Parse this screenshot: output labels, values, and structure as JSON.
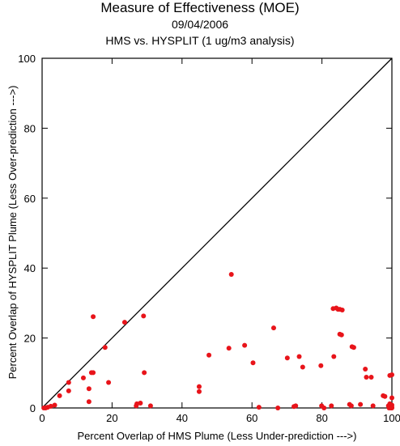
{
  "chart_data": {
    "type": "scatter",
    "title": "Measure of Effectiveness (MOE)",
    "subtitle_date": "09/04/2006",
    "subtitle_analysis": "HMS vs. HYSPLIT  (1 ug/m3 analysis)",
    "xlabel": "Percent Overlap of HMS Plume (Less Under-prediction --->)",
    "ylabel": "Percent Overlap of HYSPLIT Plume (Less Over-prediction --->)",
    "xlim": [
      0,
      100
    ],
    "ylim": [
      0,
      100
    ],
    "xticks": [
      0,
      20,
      40,
      60,
      80,
      100
    ],
    "yticks": [
      0,
      20,
      40,
      60,
      80,
      100
    ],
    "reference_line": {
      "from": [
        0,
        0
      ],
      "to": [
        100,
        100
      ]
    },
    "grid": false,
    "point_color": "#e8141a",
    "points": [
      [
        0.5,
        0.0
      ],
      [
        1.0,
        0.0
      ],
      [
        1.6,
        0.2
      ],
      [
        2.5,
        0.5
      ],
      [
        3.6,
        0.8
      ],
      [
        5.0,
        3.5
      ],
      [
        7.6,
        7.3
      ],
      [
        7.6,
        4.9
      ],
      [
        11.8,
        8.6
      ],
      [
        13.4,
        1.8
      ],
      [
        13.4,
        5.5
      ],
      [
        14.1,
        10.1
      ],
      [
        14.6,
        10.1
      ],
      [
        14.6,
        26.1
      ],
      [
        18.0,
        17.3
      ],
      [
        19.0,
        7.3
      ],
      [
        23.6,
        24.5
      ],
      [
        26.9,
        0.6
      ],
      [
        27.1,
        1.2
      ],
      [
        28.1,
        1.4
      ],
      [
        29.0,
        26.3
      ],
      [
        29.2,
        10.1
      ],
      [
        31.0,
        0.6
      ],
      [
        44.9,
        6.1
      ],
      [
        44.9,
        4.7
      ],
      [
        47.7,
        15.1
      ],
      [
        53.4,
        17.1
      ],
      [
        54.1,
        38.2
      ],
      [
        57.9,
        17.9
      ],
      [
        60.3,
        12.9
      ],
      [
        62.0,
        0.2
      ],
      [
        66.2,
        22.9
      ],
      [
        67.4,
        0.0
      ],
      [
        70.1,
        14.3
      ],
      [
        72.0,
        0.4
      ],
      [
        72.5,
        0.6
      ],
      [
        73.5,
        14.7
      ],
      [
        74.5,
        11.7
      ],
      [
        79.7,
        12.1
      ],
      [
        79.9,
        0.6
      ],
      [
        80.6,
        0.0
      ],
      [
        82.7,
        0.6
      ],
      [
        83.2,
        28.4
      ],
      [
        83.4,
        14.7
      ],
      [
        84.1,
        28.6
      ],
      [
        84.6,
        28.2
      ],
      [
        85.1,
        21.1
      ],
      [
        85.1,
        28.2
      ],
      [
        85.6,
        20.9
      ],
      [
        85.8,
        28.0
      ],
      [
        87.9,
        1.0
      ],
      [
        88.4,
        0.6
      ],
      [
        88.6,
        17.5
      ],
      [
        89.1,
        17.3
      ],
      [
        91.0,
        1.0
      ],
      [
        92.4,
        11.1
      ],
      [
        92.7,
        8.8
      ],
      [
        94.1,
        8.8
      ],
      [
        94.6,
        0.6
      ],
      [
        97.5,
        3.5
      ],
      [
        98.0,
        3.3
      ],
      [
        99.0,
        0.6
      ],
      [
        99.2,
        0.0
      ],
      [
        99.4,
        9.3
      ],
      [
        99.4,
        1.2
      ],
      [
        99.7,
        0.0
      ],
      [
        100.0,
        9.5
      ],
      [
        100.0,
        2.9
      ],
      [
        100.0,
        0.8
      ],
      [
        100.0,
        0.2
      ],
      [
        100.0,
        0.0
      ]
    ]
  }
}
